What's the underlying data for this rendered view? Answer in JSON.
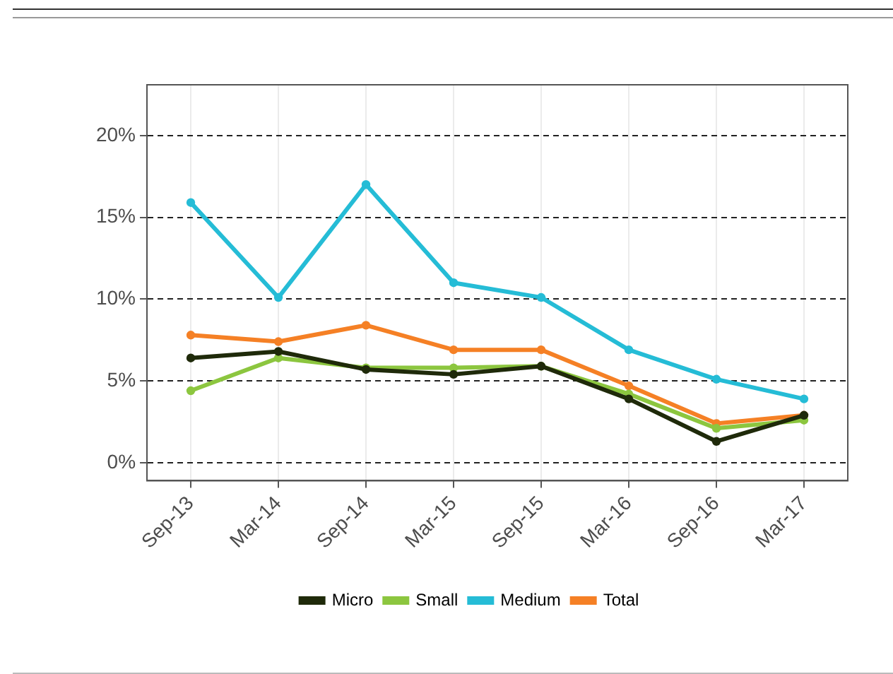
{
  "chart_data": {
    "type": "line",
    "categories": [
      "Sep-13",
      "Mar-14",
      "Sep-14",
      "Mar-15",
      "Sep-15",
      "Mar-16",
      "Sep-16",
      "Mar-17"
    ],
    "series": [
      {
        "name": "Micro",
        "color": "#1f2a0a",
        "values": [
          6.4,
          6.8,
          5.7,
          5.4,
          5.9,
          3.9,
          1.3,
          2.9
        ]
      },
      {
        "name": "Small",
        "color": "#8cc63f",
        "values": [
          4.4,
          6.4,
          5.8,
          5.8,
          5.9,
          4.2,
          2.1,
          2.6
        ]
      },
      {
        "name": "Medium",
        "color": "#25bcd6",
        "values": [
          15.9,
          10.1,
          17,
          11,
          10.1,
          6.9,
          5.1,
          3.9
        ]
      },
      {
        "name": "Total",
        "color": "#f58025",
        "values": [
          7.8,
          7.4,
          8.4,
          6.9,
          6.9,
          4.7,
          2.4,
          2.9
        ]
      }
    ],
    "ylim": [
      -1.1,
      23.1
    ],
    "yticks": [
      {
        "value": 0,
        "label": "0%"
      },
      {
        "value": 5,
        "label": "5%"
      },
      {
        "value": 10,
        "label": "10%"
      },
      {
        "value": 15,
        "label": "15%"
      },
      {
        "value": 20,
        "label": "20%"
      }
    ],
    "grid": true,
    "legend": "bottom",
    "marker": "circle",
    "line_style": "solid"
  }
}
